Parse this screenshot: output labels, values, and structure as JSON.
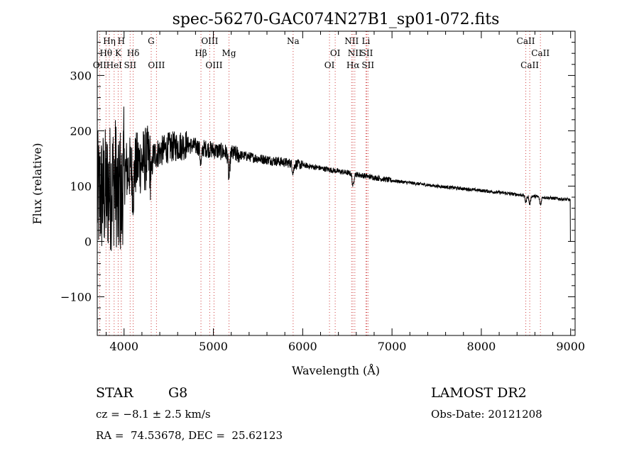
{
  "chart_data": {
    "type": "line",
    "title": "spec-56270-GAC074N27B1_sp01-072.fits",
    "xlabel": "Wavelength (Å)",
    "ylabel": "Flux (relative)",
    "xlim": [
      3700,
      9050
    ],
    "ylim": [
      -170,
      380
    ],
    "xticks": [
      4000,
      5000,
      6000,
      7000,
      8000,
      9000
    ],
    "xtick_labels": [
      "4000",
      "5000",
      "6000",
      "7000",
      "8000",
      "9000"
    ],
    "yticks": [
      -100,
      0,
      100,
      200,
      300
    ],
    "ytick_labels": [
      "−100",
      "0",
      "100",
      "200",
      "300"
    ],
    "line_colors": {
      "spectrum": "#000000",
      "lines": "#d04040",
      "axes": "#000000"
    },
    "spectral_lines": [
      {
        "label": "Hη",
        "wavelength": 3835,
        "row": 0
      },
      {
        "label": "H",
        "wavelength": 3969,
        "row": 0
      },
      {
        "label": "G",
        "wavelength": 4304,
        "row": 0
      },
      {
        "label": "OIII",
        "wavelength": 4959,
        "row": 0
      },
      {
        "label": "Na",
        "wavelength": 5893,
        "row": 0
      },
      {
        "label": "NII",
        "wavelength": 6548,
        "row": 0
      },
      {
        "label": "Li",
        "wavelength": 6708,
        "row": 0
      },
      {
        "label": "CaII",
        "wavelength": 8498,
        "row": 0
      },
      {
        "label": "Hθ",
        "wavelength": 3798,
        "row": 1
      },
      {
        "label": "K",
        "wavelength": 3934,
        "row": 1
      },
      {
        "label": "Hδ",
        "wavelength": 4102,
        "row": 1
      },
      {
        "label": "Hβ",
        "wavelength": 4861,
        "row": 1
      },
      {
        "label": "Mg",
        "wavelength": 5175,
        "row": 1
      },
      {
        "label": "OI",
        "wavelength": 6364,
        "row": 1
      },
      {
        "label": "NII",
        "wavelength": 6584,
        "row": 1
      },
      {
        "label": "SII",
        "wavelength": 6717,
        "row": 1
      },
      {
        "label": "CaII",
        "wavelength": 8662,
        "row": 1
      },
      {
        "label": "OII",
        "wavelength": 3727,
        "row": 2
      },
      {
        "label": "HeI",
        "wavelength": 3889,
        "row": 2
      },
      {
        "label": "SII",
        "wavelength": 4068,
        "row": 2
      },
      {
        "label": "OIII",
        "wavelength": 4363,
        "row": 2
      },
      {
        "label": "OIII",
        "wavelength": 5007,
        "row": 2
      },
      {
        "label": "OI",
        "wavelength": 6300,
        "row": 2
      },
      {
        "label": "Hα",
        "wavelength": 6563,
        "row": 2
      },
      {
        "label": "SII",
        "wavelength": 6731,
        "row": 2
      },
      {
        "label": "CaII",
        "wavelength": 8542,
        "row": 2
      }
    ],
    "spectrum": {
      "wavelength_range": [
        3700,
        9000
      ],
      "continuum_anchors": [
        [
          3700,
          80
        ],
        [
          3800,
          90
        ],
        [
          3900,
          110
        ],
        [
          4000,
          125
        ],
        [
          4200,
          145
        ],
        [
          4500,
          170
        ],
        [
          4700,
          175
        ],
        [
          5000,
          165
        ],
        [
          5500,
          150
        ],
        [
          6000,
          138
        ],
        [
          6500,
          124
        ],
        [
          7000,
          110
        ],
        [
          7500,
          100
        ],
        [
          8000,
          92
        ],
        [
          8500,
          83
        ],
        [
          9000,
          75
        ]
      ],
      "absorption_dips": [
        [
          3934,
          60
        ],
        [
          3969,
          55
        ],
        [
          4102,
          40
        ],
        [
          4304,
          35
        ],
        [
          4861,
          30
        ],
        [
          5175,
          45
        ],
        [
          5893,
          15
        ],
        [
          6563,
          22
        ],
        [
          8498,
          12
        ],
        [
          8542,
          15
        ],
        [
          8662,
          14
        ]
      ],
      "end_drop": [
        8995,
        0
      ]
    }
  },
  "info": {
    "object_type": "STAR",
    "subclass": "G8",
    "survey": "LAMOST DR2",
    "cz": "cz = −8.1 ± 2.5 km/s",
    "obs_date": "Obs-Date: 20121208",
    "coords": "RA =  74.53678, DEC =  25.62123"
  }
}
